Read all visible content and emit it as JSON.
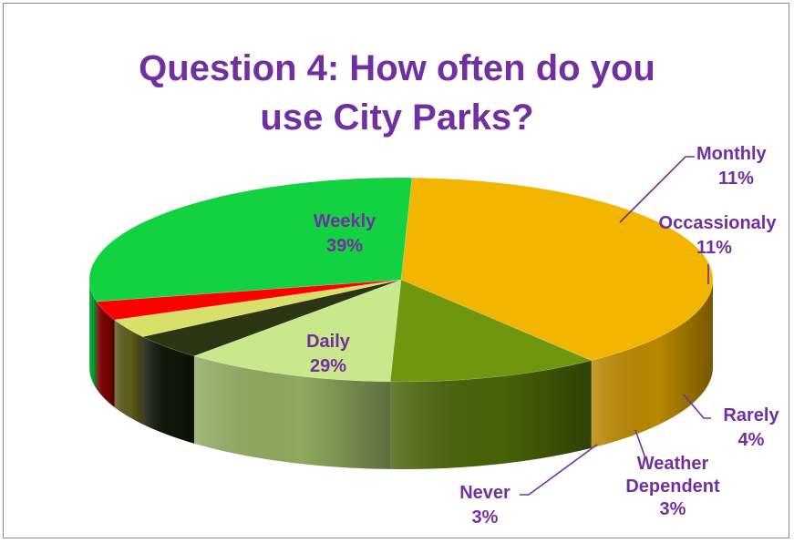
{
  "chart_data": {
    "type": "pie",
    "title": [
      "Question 4: How often do you",
      "use City Parks?"
    ],
    "slices": [
      {
        "name": "Weekly",
        "value": 39,
        "pct": "39%",
        "color": "#f2b600",
        "side": "#b88700"
      },
      {
        "name": "Monthly",
        "value": 11,
        "pct": "11%",
        "color": "#6f960e",
        "side": "#486308"
      },
      {
        "name": "Occassionaly",
        "value": 11,
        "pct": "11%",
        "color": "#c9e88c",
        "side": "#8fa95e"
      },
      {
        "name": "Rarely",
        "value": 4,
        "pct": "4%",
        "color": "#2b3512",
        "side": "#12170a"
      },
      {
        "name": "Weather Dependent",
        "value": 3,
        "pct": "3%",
        "color": "#d8e06a",
        "side": "#5e5e1e"
      },
      {
        "name": "Never",
        "value": 3,
        "pct": "3%",
        "color": "#ff0000",
        "side": "#7a0000"
      },
      {
        "name": "Daily",
        "value": 29,
        "pct": "29%",
        "color": "#12d241",
        "side": "#0b9e2e"
      }
    ],
    "legend": "none",
    "data_labels": "category and percentage"
  }
}
